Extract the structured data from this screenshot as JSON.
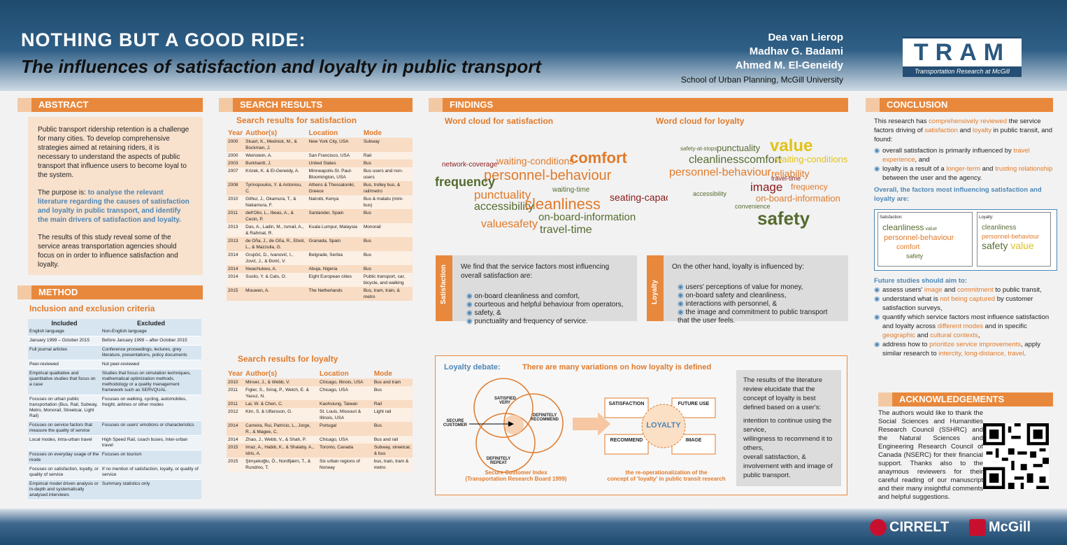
{
  "header": {
    "title": "NOTHING BUT A GOOD RIDE:",
    "subtitle": "The influences of satisfaction and loyalty in public transport",
    "authors": [
      "Dea van Lierop",
      "Madhav G. Badami",
      "Ahmed M. El-Geneidy"
    ],
    "affiliation": "School of Urban Planning, McGill University",
    "logo_big": "TRAM",
    "logo_small": "Transportation Research at McGill"
  },
  "abstract": {
    "heading": "ABSTRACT",
    "p1": "Public transport ridership retention is a challenge for many cities. To develop comprehensive strategies aimed at retaining riders, it is necessary to understand the aspects of public transport that influence users to become loyal to the system.",
    "p2_pre": "The purpose is: ",
    "p2_hl": "to analyse the relevant literature regarding the causes of satisfaction and loyalty in public transport, and identify the main drivers of satisfaction and loyalty.",
    "p3": "The results of this study reveal some of the service areas transportation agencies should focus on in order to influence satisfaction and loyalty."
  },
  "method": {
    "heading": "METHOD",
    "sub": "Inclusion and exclusion criteria",
    "cols": [
      "Included",
      "Excluded"
    ],
    "rows": [
      [
        "English language",
        "Non-English language"
      ],
      [
        "January 1999 – October 2015",
        "Before January 1999 – after October 2015"
      ],
      [
        "Full journal articles",
        "Conference proceedings, lectures, grey literature, presentations, policy documents"
      ],
      [
        "Peer-reviewed",
        "Not peer-reviewed"
      ],
      [
        "Empirical qualitative and quantitative studies that focus on a case",
        "Studies that focus on simulation techniques, mathematical optimization methods, methodology or a quality management framework such as SERVQUAL"
      ],
      [
        "Focuses on urban public transportation (Bus, Rail, Subway, Metro, Monorail, Streetcar, Light Rail)",
        "Focuses on walking, cycling, automobiles, freight, airlines or other modes"
      ],
      [
        "Focuses on service factors that measure the quality of service",
        "Focuses on users' emotions or characteristics"
      ],
      [
        "Local modes, intra-urban travel",
        "High Speed Rail, coach buses, Inter-urban travel"
      ],
      [
        "Focuses on everyday usage of the mode",
        "Focuses on tourism"
      ],
      [
        "Focuses on satisfaction, loyalty, or quality of service",
        "If no mention of satisfaction, loyalty, or quality of service"
      ],
      [
        "Empirical model driven analysis or in-depth and systematically analysed interviews",
        "Summary statistics only"
      ]
    ]
  },
  "search": {
    "heading": "SEARCH RESULTS",
    "sat_title": "Search results for satisfaction",
    "loy_title": "Search results for loyalty",
    "cols": [
      "Year",
      "Author(s)",
      "Location",
      "Mode"
    ],
    "sat_rows": [
      [
        "2000",
        "Stuart, K., Mednick, M., & Bockman, J.",
        "New York City, USA",
        "Subway"
      ],
      [
        "2000",
        "Weinstein, A.",
        "San Francisco, USA",
        "Rail"
      ],
      [
        "2003",
        "Burkhardt, J.",
        "United States",
        "Bus"
      ],
      [
        "2007",
        "Krizek, K. & El-Geneidy, A.",
        "Minneapolis-St. Paul-Bloomington, USA",
        "Bus users and non-users"
      ],
      [
        "2008",
        "Tyrinopoulos, Y. & Antoniou, C.",
        "Athens & Thessaloniki, Greece",
        "Bus, trolley bus, & rail/metro"
      ],
      [
        "2010",
        "Githui, J., Okamura, T., & Nakamura, F.",
        "Nairobi, Kenya",
        "Bus & matatu (mini-bus)"
      ],
      [
        "2011",
        "dell'Olio, L., Ibeas, A., & Cecin, P.",
        "Santander, Spain",
        "Bus"
      ],
      [
        "2013",
        "Das, A., Ladin, M., Ismail, A., & Rahmat, R.",
        "Kuala Lumpur, Malaysia",
        "Monorail"
      ],
      [
        "2013",
        "de Oña, J., de Oña, R., Eboli, L., & Mazzulla, G.",
        "Granada, Spain",
        "Bus"
      ],
      [
        "2014",
        "Grujičić, D., Ivanović, I., Jović, J., & Đorić, V.",
        "Belgrade, Serbia",
        "Bus"
      ],
      [
        "2014",
        "Nwachukwu, A.",
        "Abuja, Nigeria",
        "Bus"
      ],
      [
        "2014",
        "Susilo, Y. & Cats, O.",
        "Eight European cities",
        "Public transport, car, bicycle, and walking"
      ],
      [
        "2015",
        "Mouwen, A.",
        "The Netherlands",
        "Bus, tram, train, & metro"
      ]
    ],
    "loy_rows": [
      [
        "2010",
        "Minser, J., & Webb, V.",
        "Chicago, Illinois, USA",
        "Bus and train"
      ],
      [
        "2011",
        "Figler, S., Sriraj, P., Welch, E. & Yavuz, N.",
        "Chicago, USA",
        "Bus"
      ],
      [
        "2011",
        "Lai, W. & Chen, C.",
        "Kaohsiung, Taiwan",
        "Rail"
      ],
      [
        "2012",
        "Kim, S. & Ulfarsson, G.",
        "St. Louis, Missouri & Illinois, USA",
        "Light rail"
      ],
      [
        "2014",
        "Carreira, Rui, Patrício, L., Jorge, R., & Magee, C.",
        "Portugal",
        "Bus"
      ],
      [
        "2014",
        "Zhao, J., Webb, V., & Shah, P.",
        "Chicago, USA",
        "Bus and rail"
      ],
      [
        "2015",
        "Imaz, A., Habib, K., & Shalaby, A., Idris, A.",
        "Toronto, Canada",
        "Subway, streetcar, & bus"
      ],
      [
        "2015",
        "Şimşekoğlu, Ö., Nordfjærn, T., & Rundmo, T.",
        "Six urban regions of Norway",
        "bus, train, tram & metro"
      ]
    ]
  },
  "findings": {
    "heading": "FINDINGS",
    "wc_sat": "Word cloud for satisfaction",
    "wc_loy": "Word cloud for loyalty",
    "sat_tab": "Satisfaction",
    "sat_intro": "We find that the service factors most influencing overall satisfaction are:",
    "sat_items": [
      "on-board cleanliness and comfort,",
      "courteous and helpful behaviour from operators,",
      "safety,  &",
      "punctuality and frequency of service."
    ],
    "loy_tab": "Loyalty",
    "loy_intro": "On the other hand, loyalty is influenced by:",
    "loy_items": [
      "users' perceptions of value for money,",
      "on-board safety and cleanliness,",
      "interactions with personnel, &",
      "the image and commitment to public transport that the user feels."
    ],
    "ld_title": "Loyalty debate:",
    "ld_sub": "There are many variations on how loyalty is defined",
    "venn": {
      "a": "SATISFIED VERY",
      "b": "DEFINITELY RECOMMEND",
      "c": "DEFINITELY REPEAT",
      "side": "SECURE CUSTOMER"
    },
    "venn_cap1": "Secure Customer Index",
    "venn_cap2": "(Transportation Research Board 1999)",
    "loy_boxes": [
      "SATISFACTION",
      "FUTURE USE",
      "RECOMMEND",
      "IMAGE"
    ],
    "loy_center": "LOYALTY",
    "loy_cap1": "the re-operationalization of the",
    "loy_cap2": "concept of 'loyalty' in public transit research",
    "ld_text": "The results of the literature review elucidate that the concept of loyalty is best defined based on a user's:",
    "ld_items": [
      "intention to continue using the service,",
      "willingness to recommend it to others,",
      "overall satisfaction, &",
      "involvement with and image of public transport."
    ]
  },
  "conclusion": {
    "heading": "CONCLUSION",
    "ack_heading": "ACKNOWLEDGEMENTS",
    "ack": "The authors would like to thank the Social Sciences and Humanities Research Council (SSHRC) and the Natural Sciences and Engineering Research Council of Canada (NSERC) for their financial support. Thanks also to the anaymous reviewers for their careful reading of our manuscript and their many insightful comments and helpful suggestions.",
    "overall": "Overall, the factors most influencing satisfaction and loyalty are:",
    "sat_label": "Satisfaction:",
    "loy_label": "Loyalty:",
    "future": "Future studies should aim to:"
  },
  "footer": {
    "cirrelt": "CIRRELT",
    "mcgill": "McGill"
  }
}
